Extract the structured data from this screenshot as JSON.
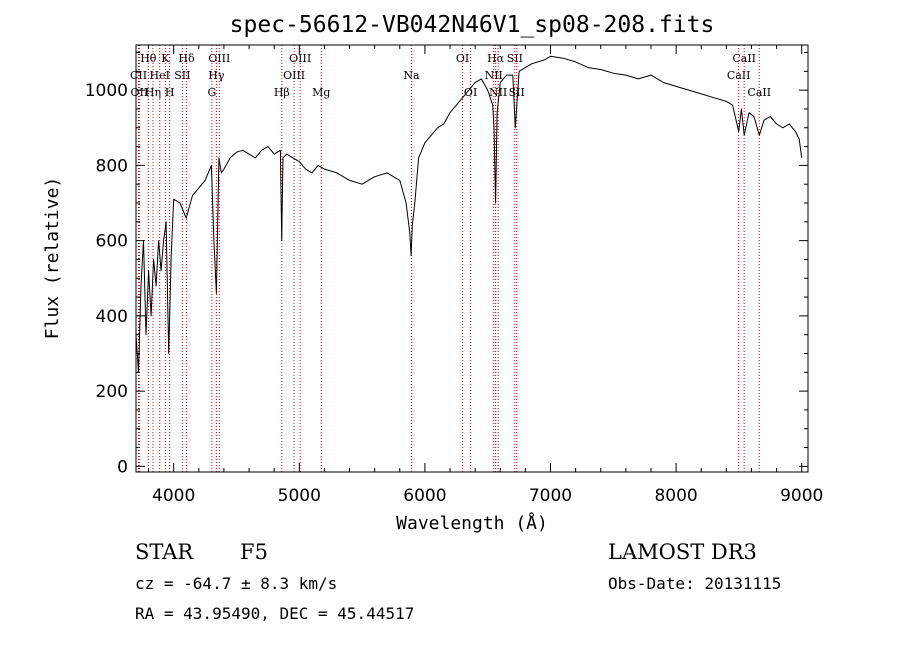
{
  "chart_data": {
    "type": "line",
    "title": "spec-56612-VB042N46V1_sp08-208.fits",
    "xlabel": "Wavelength (Å)",
    "ylabel": "Flux (relative)",
    "xlim": [
      3700,
      9050
    ],
    "ylim": [
      -15,
      1120
    ],
    "xticks": [
      4000,
      5000,
      6000,
      7000,
      8000,
      9000
    ],
    "yticks": [
      0,
      200,
      400,
      600,
      800,
      1000
    ],
    "grid": false,
    "series": [
      {
        "color": "#000000",
        "x": [
          3700,
          3720,
          3740,
          3760,
          3780,
          3800,
          3820,
          3840,
          3860,
          3880,
          3900,
          3920,
          3940,
          3960,
          3980,
          4000,
          4050,
          4100,
          4150,
          4200,
          4250,
          4300,
          4320,
          4340,
          4360,
          4380,
          4400,
          4450,
          4500,
          4550,
          4600,
          4650,
          4700,
          4750,
          4800,
          4850,
          4860,
          4870,
          4900,
          4950,
          5000,
          5050,
          5100,
          5150,
          5200,
          5300,
          5400,
          5500,
          5600,
          5700,
          5800,
          5850,
          5880,
          5890,
          5900,
          5920,
          5950,
          6000,
          6050,
          6100,
          6150,
          6200,
          6250,
          6300,
          6350,
          6400,
          6450,
          6500,
          6540,
          6550,
          6563,
          6575,
          6600,
          6650,
          6700,
          6720,
          6750,
          6800,
          6850,
          6900,
          6950,
          7000,
          7100,
          7200,
          7300,
          7400,
          7500,
          7600,
          7700,
          7800,
          7900,
          8000,
          8100,
          8200,
          8300,
          8400,
          8450,
          8498,
          8520,
          8542,
          8580,
          8620,
          8662,
          8700,
          8750,
          8800,
          8850,
          8900,
          8950,
          8980,
          9000
        ],
        "y": [
          350,
          250,
          480,
          600,
          350,
          520,
          400,
          550,
          480,
          600,
          520,
          600,
          650,
          300,
          560,
          710,
          700,
          660,
          720,
          740,
          760,
          800,
          600,
          460,
          820,
          780,
          790,
          820,
          835,
          840,
          830,
          820,
          840,
          850,
          830,
          840,
          600,
          820,
          830,
          820,
          810,
          790,
          780,
          800,
          790,
          780,
          760,
          750,
          770,
          780,
          760,
          700,
          620,
          560,
          640,
          700,
          820,
          860,
          880,
          900,
          910,
          940,
          960,
          980,
          1000,
          1020,
          1030,
          1000,
          960,
          900,
          700,
          940,
          1020,
          1040,
          1040,
          900,
          1050,
          1060,
          1070,
          1075,
          1080,
          1090,
          1085,
          1075,
          1060,
          1055,
          1045,
          1040,
          1030,
          1040,
          1020,
          1010,
          1000,
          990,
          980,
          970,
          960,
          890,
          950,
          880,
          940,
          930,
          880,
          920,
          930,
          910,
          900,
          910,
          890,
          870,
          820
        ]
      }
    ],
    "lines": [
      {
        "name": "Hθ",
        "wl": 3798,
        "row": 0
      },
      {
        "name": "CII",
        "wl": 3720,
        "row": 1
      },
      {
        "name": "OII",
        "wl": 3727,
        "row": 2
      },
      {
        "name": "Hη",
        "wl": 3835,
        "row": 2
      },
      {
        "name": "HeI",
        "wl": 3889,
        "row": 1
      },
      {
        "name": "K",
        "wl": 3934,
        "row": 0
      },
      {
        "name": "H",
        "wl": 3968,
        "row": 2
      },
      {
        "name": "SII",
        "wl": 4069,
        "row": 1
      },
      {
        "name": "Hδ",
        "wl": 4102,
        "row": 0
      },
      {
        "name": "OIII",
        "wl": 4363,
        "row": 0
      },
      {
        "name": "Hγ",
        "wl": 4340,
        "row": 1
      },
      {
        "name": "G",
        "wl": 4304,
        "row": 2
      },
      {
        "name": "Hβ",
        "wl": 4861,
        "row": 2
      },
      {
        "name": "OIII",
        "wl": 5007,
        "row": 0
      },
      {
        "name": "OIII",
        "wl": 4959,
        "row": 1
      },
      {
        "name": "Mg",
        "wl": 5175,
        "row": 2
      },
      {
        "name": "Na",
        "wl": 5893,
        "row": 1
      },
      {
        "name": "OI",
        "wl": 6300,
        "row": 0
      },
      {
        "name": "OI",
        "wl": 6364,
        "row": 2
      },
      {
        "name": "Hα",
        "wl": 6563,
        "row": 0
      },
      {
        "name": "NII",
        "wl": 6548,
        "row": 1
      },
      {
        "name": "NII",
        "wl": 6583,
        "row": 2
      },
      {
        "name": "SII",
        "wl": 6716,
        "row": 0
      },
      {
        "name": "SII",
        "wl": 6731,
        "row": 2
      },
      {
        "name": "CaII",
        "wl": 8542,
        "row": 0
      },
      {
        "name": "CaII",
        "wl": 8498,
        "row": 1
      },
      {
        "name": "CaII",
        "wl": 8662,
        "row": 2
      }
    ]
  },
  "info": {
    "class": "STAR",
    "subclass": "F5",
    "survey": "LAMOST DR3",
    "cz": "cz = -64.7 ± 8.3 km/s",
    "obs_date": "Obs-Date: 20131115",
    "coords": "RA =  43.95490, DEC =  45.44517"
  }
}
